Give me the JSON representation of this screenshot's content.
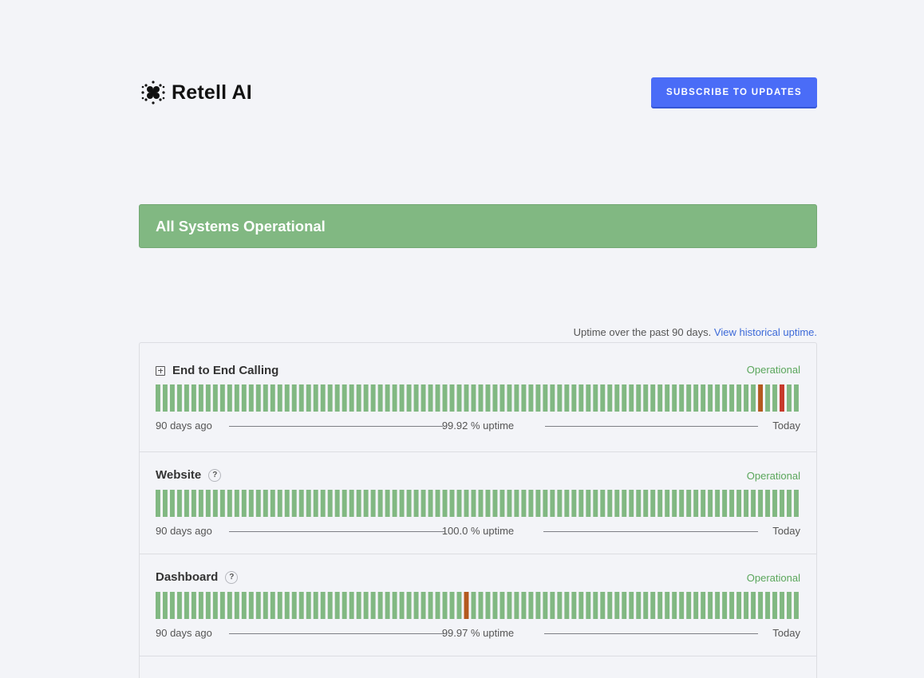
{
  "header": {
    "brand_name": "Retell AI",
    "subscribe_label": "SUBSCRIBE TO UPDATES"
  },
  "banner": {
    "text": "All Systems Operational",
    "color": "#81b882"
  },
  "uptime_note": {
    "text": "Uptime over the past 90 days.",
    "link": "View historical uptime."
  },
  "colors": {
    "operational": "#81b882",
    "partial": "#b4591f",
    "major": "#c7392b",
    "accent": "#4a6cf7"
  },
  "components": [
    {
      "name": "End to End Calling",
      "icon": "expand-icon",
      "status": "Operational",
      "uptime": "99.92 % uptime",
      "left_label": "90 days ago",
      "right_label": "Today",
      "days": 90,
      "incidents": [
        {
          "day_index": 84,
          "level": "partial"
        },
        {
          "day_index": 87,
          "level": "major"
        }
      ]
    },
    {
      "name": "Website",
      "icon": "help-icon",
      "status": "Operational",
      "uptime": "100.0 % uptime",
      "left_label": "90 days ago",
      "right_label": "Today",
      "days": 90,
      "incidents": []
    },
    {
      "name": "Dashboard",
      "icon": "help-icon",
      "status": "Operational",
      "uptime": "99.97 % uptime",
      "left_label": "90 days ago",
      "right_label": "Today",
      "days": 90,
      "incidents": [
        {
          "day_index": 43,
          "level": "partial"
        }
      ]
    }
  ]
}
